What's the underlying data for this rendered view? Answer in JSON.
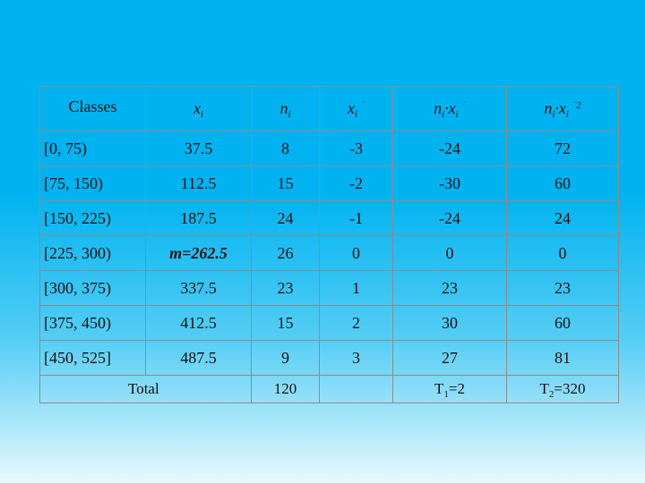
{
  "table": {
    "headers": {
      "classes": "Classes",
      "xi_base": "x",
      "xi_sub": "i",
      "ni_base": "n",
      "ni_sub": "i",
      "xip_base": "x",
      "xip_sub": "i",
      "xip_prime": "´",
      "nixip_n": "n",
      "nixip_nsub": "i",
      "nixip_dot": "·",
      "nixip_x": "x",
      "nixip_xsub": "i",
      "nixip_prime": "´",
      "nixip2_n": "n",
      "nixip2_nsub": "i",
      "nixip2_dot": "·",
      "nixip2_x": "x",
      "nixip2_xsub": "i",
      "nixip2_sup": "´2"
    },
    "rows": [
      {
        "classes": "[0, 75)",
        "xi": "37.5",
        "ni": "8",
        "xip": "-3",
        "nixip": "-24",
        "nixip2": "72"
      },
      {
        "classes": "[75, 150)",
        "xi": "112.5",
        "ni": "15",
        "xip": "-2",
        "nixip": "-30",
        "nixip2": "60"
      },
      {
        "classes": "[150, 225)",
        "xi": "187.5",
        "ni": "24",
        "xip": "-1",
        "nixip": "-24",
        "nixip2": "24"
      },
      {
        "classes": "[225, 300)",
        "xi": "m=262.5",
        "ni": "26",
        "xip": "0",
        "nixip": "0",
        "nixip2": "0"
      },
      {
        "classes": "[300, 375)",
        "xi": "337.5",
        "ni": "23",
        "xip": "1",
        "nixip": "23",
        "nixip2": "23"
      },
      {
        "classes": "[375, 450)",
        "xi": "412.5",
        "ni": "15",
        "xip": "2",
        "nixip": "30",
        "nixip2": "60"
      },
      {
        "classes": "[450, 525]",
        "xi": "487.5",
        "ni": "9",
        "xip": "3",
        "nixip": "27",
        "nixip2": "81"
      }
    ],
    "total": {
      "label": "Total",
      "ni": "120",
      "t1_base": "T",
      "t1_sub": "1",
      "t1_rest": "=2",
      "t2_base": "T",
      "t2_sub": "2",
      "t2_rest": "=320"
    }
  }
}
